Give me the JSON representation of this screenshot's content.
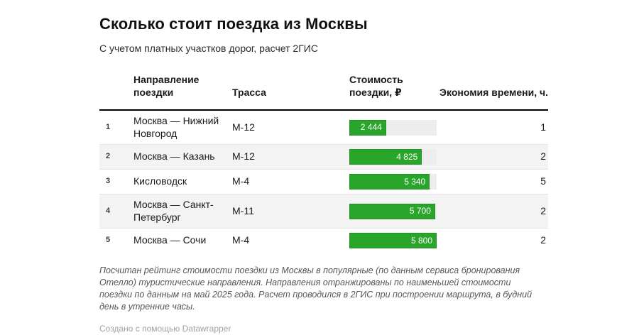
{
  "title": "Сколько стоит поездка из Москвы",
  "subtitle": "С учетом платных участков дорог, расчет 2ГИС",
  "headers": {
    "direction": "Направление поездки",
    "highway": "Трасса",
    "cost": "Стоимость поездки, ₽",
    "economy": "Экономия времени, ч."
  },
  "chart_data": {
    "type": "table",
    "title": "Сколько стоит поездка из Москвы",
    "subtitle": "С учетом платных участков дорог, расчет 2ГИС",
    "columns": [
      "Направление поездки",
      "Трасса",
      "Стоимость поездки, ₽",
      "Экономия времени, ч."
    ],
    "bar_column": "Стоимость поездки, ₽",
    "bar_max": 5800,
    "bar_color": "#2aa52c",
    "bar_track_color": "#ededed",
    "rows": [
      {
        "rank": "1",
        "direction": "Москва — Нижний Новгород",
        "highway": "М-12",
        "cost": 2444,
        "cost_label": "2 444",
        "economy": "1"
      },
      {
        "rank": "2",
        "direction": "Москва — Казань",
        "highway": "М-12",
        "cost": 4825,
        "cost_label": "4 825",
        "economy": "2"
      },
      {
        "rank": "3",
        "direction": "Кисловодск",
        "highway": "М-4",
        "cost": 5340,
        "cost_label": "5 340",
        "economy": "5"
      },
      {
        "rank": "4",
        "direction": "Москва — Санкт-Петербург",
        "highway": "М-11",
        "cost": 5700,
        "cost_label": "5 700",
        "economy": "2"
      },
      {
        "rank": "5",
        "direction": "Москва — Сочи",
        "highway": "М-4",
        "cost": 5800,
        "cost_label": "5 800",
        "economy": "2"
      }
    ]
  },
  "notes": "Посчитан рейтинг стоимости поездки из Москвы в популярные (по данным сервиса бронирования Отелло) туристические направления. Направления отранжированы по наименьшей стоимости поездки по данным на май 2025 года. Расчет проводился в 2ГИС при построении маршрута, в будний день в утренние часы.",
  "attribution": "Создано с помощью Datawrapper"
}
